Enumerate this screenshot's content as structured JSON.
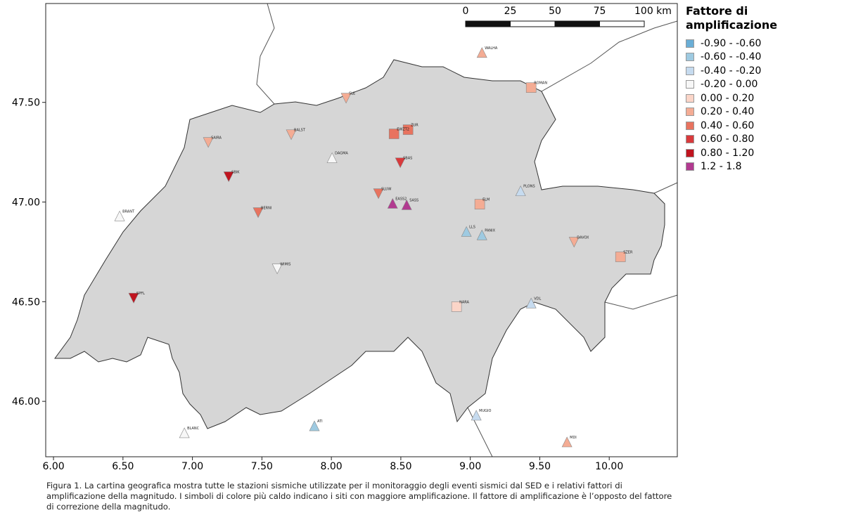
{
  "map": {
    "xlim": [
      5.944,
      10.49
    ],
    "ylim": [
      45.722,
      47.996
    ],
    "xticks": [
      {
        "value": 6,
        "label": "6.00"
      },
      {
        "value": 6.5,
        "label": "6.50"
      },
      {
        "value": 7,
        "label": "7.00"
      },
      {
        "value": 7.5,
        "label": "7.50"
      },
      {
        "value": 8,
        "label": "8.00"
      },
      {
        "value": 8.5,
        "label": "8.50"
      },
      {
        "value": 9,
        "label": "9.00"
      },
      {
        "value": 9.5,
        "label": "9.50"
      },
      {
        "value": 10,
        "label": "10.00"
      }
    ],
    "yticks": [
      {
        "value": 46,
        "label": "46.00"
      },
      {
        "value": 46.5,
        "label": "46.50"
      },
      {
        "value": 47,
        "label": "47.00"
      },
      {
        "value": 47.5,
        "label": "47.50"
      }
    ],
    "scale_bar": {
      "ticks": [
        0,
        25,
        50,
        75,
        {
          "value": 100,
          "label": "100 km"
        }
      ]
    },
    "legend_title": "Fattore di amplificazione",
    "classes": [
      {
        "label": "-0.90 - -0.60",
        "color": "#6aaed6"
      },
      {
        "label": "-0.60 - -0.40",
        "color": "#9ecae1"
      },
      {
        "label": "-0.40 - -0.20",
        "color": "#c6dbef"
      },
      {
        "label": "-0.20 - 0.00",
        "color": "#f7f7f7"
      },
      {
        "label": "0.00 - 0.20",
        "color": "#fbd5c8"
      },
      {
        "label": "0.20 - 0.40",
        "color": "#f4ac94"
      },
      {
        "label": "0.40 - 0.60",
        "color": "#e8735f"
      },
      {
        "label": "0.60 - 0.80",
        "color": "#d93a3c"
      },
      {
        "label": "0.80 - 1.20",
        "color": "#c0141f"
      },
      {
        "label": "1.2 - 1.8",
        "color": "#b23a90"
      }
    ],
    "stations": [
      {
        "name": "SAIRA",
        "lon": 7.114,
        "lat": 47.299,
        "class": 5,
        "shape": "down"
      },
      {
        "name": "BALST",
        "lon": 7.711,
        "lat": 47.338,
        "class": 5,
        "shape": "down"
      },
      {
        "name": "SBAS",
        "lon": 8.496,
        "lat": 47.197,
        "class": 7,
        "shape": "down"
      },
      {
        "name": "ZUR",
        "lon": 8.552,
        "lat": 47.363,
        "class": 6,
        "shape": "square"
      },
      {
        "name": "EWZT2",
        "lon": 8.451,
        "lat": 47.342,
        "class": 6,
        "shape": "square"
      },
      {
        "name": "SLUW",
        "lon": 8.339,
        "lat": 47.042,
        "class": 6,
        "shape": "down"
      },
      {
        "name": "LLS",
        "lon": 8.972,
        "lat": 46.852,
        "class": 1,
        "shape": "up"
      },
      {
        "name": "PANIX",
        "lon": 9.084,
        "lat": 46.835,
        "class": 1,
        "shape": "up"
      },
      {
        "name": "BRANT",
        "lon": 6.476,
        "lat": 46.93,
        "class": 3,
        "shape": "up"
      },
      {
        "name": "DAVOX",
        "lon": 9.747,
        "lat": 46.799,
        "class": 5,
        "shape": "down"
      },
      {
        "name": "WIMIS",
        "lon": 7.61,
        "lat": 46.665,
        "class": 3,
        "shape": "down"
      },
      {
        "name": "EASS2",
        "lon": 8.441,
        "lat": 46.993,
        "class": 9,
        "shape": "up"
      },
      {
        "name": "SASS",
        "lon": 8.542,
        "lat": 46.986,
        "class": 9,
        "shape": "up"
      },
      {
        "name": "SPFL",
        "lon": 6.577,
        "lat": 46.518,
        "class": 8,
        "shape": "down"
      },
      {
        "name": "SBIK",
        "lon": 7.261,
        "lat": 47.127,
        "class": 8,
        "shape": "down"
      },
      {
        "name": "BERNI",
        "lon": 7.473,
        "lat": 46.947,
        "class": 6,
        "shape": "down"
      },
      {
        "name": "PLONS",
        "lon": 9.362,
        "lat": 47.056,
        "class": 2,
        "shape": "up"
      },
      {
        "name": "ELM",
        "lon": 9.068,
        "lat": 46.989,
        "class": 5,
        "shape": "square"
      },
      {
        "name": "WALHA",
        "lon": 9.084,
        "lat": 47.75,
        "class": 5,
        "shape": "up"
      },
      {
        "name": "VDL",
        "lon": 9.438,
        "lat": 46.493,
        "class": 2,
        "shape": "up"
      },
      {
        "name": "MUGIO",
        "lon": 9.043,
        "lat": 45.93,
        "class": 2,
        "shape": "up"
      },
      {
        "name": "SZER",
        "lon": 10.081,
        "lat": 46.725,
        "class": 5,
        "shape": "square"
      },
      {
        "name": "SLE",
        "lon": 8.106,
        "lat": 47.521,
        "class": 5,
        "shape": "down"
      },
      {
        "name": "BLANC",
        "lon": 6.942,
        "lat": 45.842,
        "class": 3,
        "shape": "up"
      },
      {
        "name": "NARA",
        "lon": 8.901,
        "lat": 46.475,
        "class": 4,
        "shape": "square"
      },
      {
        "name": "ATI",
        "lon": 7.878,
        "lat": 45.877,
        "class": 1,
        "shape": "up"
      },
      {
        "name": "MDI",
        "lon": 9.696,
        "lat": 45.796,
        "class": 5,
        "shape": "up"
      },
      {
        "name": "ROMAN",
        "lon": 9.438,
        "lat": 47.574,
        "class": 5,
        "shape": "square"
      },
      {
        "name": "DAGMA",
        "lon": 8.005,
        "lat": 47.222,
        "class": 3,
        "shape": "up"
      }
    ],
    "caption": "Figura 1. La cartina geografica mostra tutte le stazioni sismiche utilizzate per il monitoraggio degli eventi sismici dal SED e i relativi fattori di amplificazione della magnitudo. I simboli di colore più caldo indicano i siti con maggiore amplificazione. Il fattore di amplificazione è l’opposto del fattore di correzione della magnitudo."
  }
}
